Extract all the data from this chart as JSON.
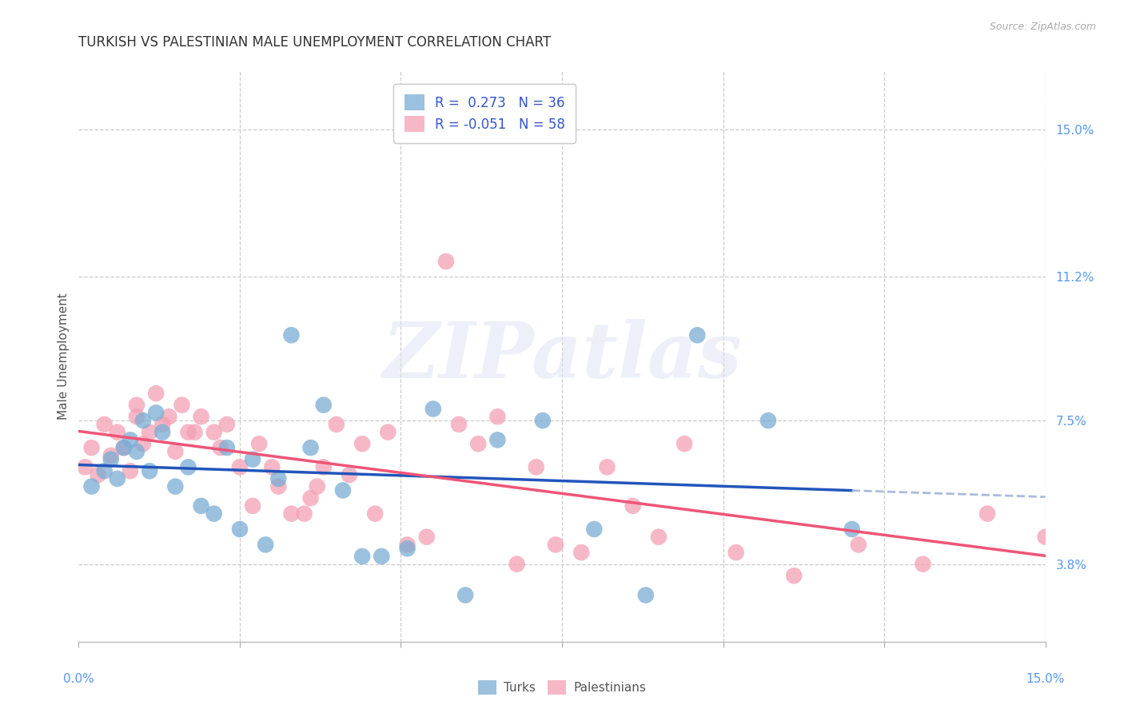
{
  "title": "TURKISH VS PALESTINIAN MALE UNEMPLOYMENT CORRELATION CHART",
  "source": "Source: ZipAtlas.com",
  "ylabel": "Male Unemployment",
  "ytick_values": [
    0.038,
    0.075,
    0.112,
    0.15
  ],
  "ytick_labels": [
    "3.8%",
    "7.5%",
    "11.2%",
    "15.0%"
  ],
  "xlim": [
    0.0,
    0.15
  ],
  "ylim": [
    0.018,
    0.165
  ],
  "watermark": "ZIPatlas",
  "turks_color": "#7aadd4",
  "palestinians_color": "#f4a0b5",
  "turks_line_color": "#2255bb",
  "palestinians_line_color": "#ee5577",
  "turks_dashed_color": "#aabbdd",
  "background_color": "#ffffff",
  "grid_color": "#cccccc",
  "title_fontsize": 12,
  "axis_label_fontsize": 11,
  "tick_label_fontsize": 11,
  "source_fontsize": 9,
  "turks_R": 0.273,
  "turks_N": 36,
  "palestinians_R": -0.051,
  "palestinians_N": 58,
  "turks_x": [
    0.002,
    0.004,
    0.005,
    0.006,
    0.007,
    0.008,
    0.009,
    0.01,
    0.011,
    0.012,
    0.013,
    0.015,
    0.017,
    0.019,
    0.021,
    0.023,
    0.025,
    0.027,
    0.029,
    0.031,
    0.033,
    0.036,
    0.038,
    0.041,
    0.044,
    0.047,
    0.051,
    0.055,
    0.06,
    0.065,
    0.072,
    0.08,
    0.088,
    0.096,
    0.107,
    0.12
  ],
  "turks_y": [
    0.058,
    0.062,
    0.065,
    0.06,
    0.068,
    0.07,
    0.067,
    0.075,
    0.062,
    0.077,
    0.072,
    0.058,
    0.063,
    0.053,
    0.051,
    0.068,
    0.047,
    0.065,
    0.043,
    0.06,
    0.097,
    0.068,
    0.079,
    0.057,
    0.04,
    0.04,
    0.042,
    0.078,
    0.03,
    0.07,
    0.075,
    0.047,
    0.03,
    0.097,
    0.075,
    0.047
  ],
  "palestinians_x": [
    0.001,
    0.002,
    0.003,
    0.004,
    0.005,
    0.006,
    0.007,
    0.008,
    0.009,
    0.009,
    0.01,
    0.011,
    0.012,
    0.013,
    0.014,
    0.015,
    0.016,
    0.017,
    0.018,
    0.019,
    0.021,
    0.022,
    0.023,
    0.025,
    0.027,
    0.028,
    0.03,
    0.031,
    0.033,
    0.035,
    0.036,
    0.037,
    0.038,
    0.04,
    0.042,
    0.044,
    0.046,
    0.048,
    0.051,
    0.054,
    0.057,
    0.059,
    0.062,
    0.065,
    0.068,
    0.071,
    0.074,
    0.078,
    0.082,
    0.086,
    0.09,
    0.094,
    0.102,
    0.111,
    0.121,
    0.131,
    0.141,
    0.15
  ],
  "palestinians_y": [
    0.063,
    0.068,
    0.061,
    0.074,
    0.066,
    0.072,
    0.068,
    0.062,
    0.076,
    0.079,
    0.069,
    0.072,
    0.082,
    0.074,
    0.076,
    0.067,
    0.079,
    0.072,
    0.072,
    0.076,
    0.072,
    0.068,
    0.074,
    0.063,
    0.053,
    0.069,
    0.063,
    0.058,
    0.051,
    0.051,
    0.055,
    0.058,
    0.063,
    0.074,
    0.061,
    0.069,
    0.051,
    0.072,
    0.043,
    0.045,
    0.116,
    0.074,
    0.069,
    0.076,
    0.038,
    0.063,
    0.043,
    0.041,
    0.063,
    0.053,
    0.045,
    0.069,
    0.041,
    0.035,
    0.043,
    0.038,
    0.051,
    0.045
  ]
}
